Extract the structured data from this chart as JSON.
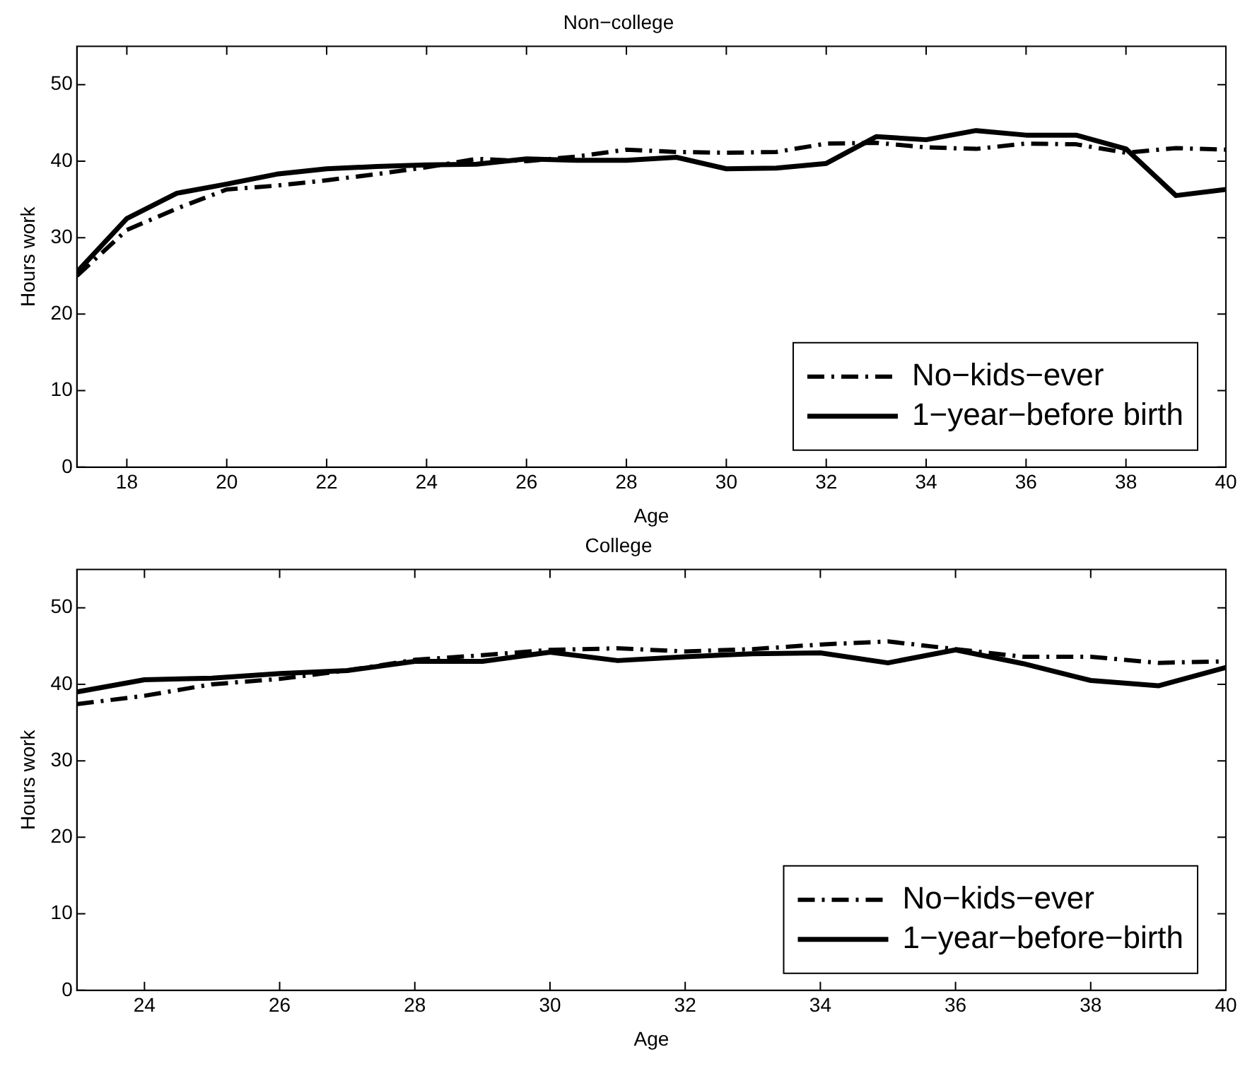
{
  "chart_data": [
    {
      "type": "line",
      "title": "Non−college",
      "xlabel": "Age",
      "ylabel": "Hours work",
      "x": [
        17,
        18,
        19,
        20,
        21,
        22,
        23,
        24,
        25,
        26,
        27,
        28,
        29,
        30,
        31,
        32,
        33,
        34,
        35,
        36,
        37,
        38,
        39,
        40
      ],
      "series": [
        {
          "name": "No−kids−ever",
          "color": "#000000",
          "line_style": "dashed",
          "values": [
            25,
            31,
            33.8,
            36.3,
            36.8,
            37.5,
            38.3,
            39.2,
            40.3,
            40,
            40.6,
            41.5,
            41.2,
            41.1,
            41.2,
            42.3,
            42.4,
            41.8,
            41.6,
            42.3,
            42.2,
            41.1,
            41.7,
            41.5
          ]
        },
        {
          "name": "1−year−before birth",
          "color": "#000000",
          "line_style": "solid",
          "values": [
            25.5,
            32.5,
            35.8,
            37,
            38.3,
            39,
            39.3,
            39.5,
            39.6,
            40.3,
            40.1,
            40.1,
            40.5,
            39,
            39.1,
            39.7,
            43.2,
            42.8,
            44,
            43.4,
            43.4,
            41.6,
            35.5,
            36.3
          ]
        }
      ],
      "xlim": [
        17,
        40
      ],
      "xticks": [
        18,
        20,
        22,
        24,
        26,
        28,
        30,
        32,
        34,
        36,
        38,
        40
      ],
      "ylim": [
        0,
        55
      ],
      "yticks": [
        0,
        10,
        20,
        30,
        40,
        50
      ],
      "grid": false,
      "legend": "bottom right",
      "marker": "none"
    },
    {
      "type": "line",
      "title": "College",
      "xlabel": "Age",
      "ylabel": "Hours work",
      "x": [
        23,
        24,
        25,
        26,
        27,
        28,
        29,
        30,
        31,
        32,
        33,
        34,
        35,
        36,
        37,
        38,
        39,
        40
      ],
      "series": [
        {
          "name": "No−kids−ever",
          "color": "#000000",
          "line_style": "dashed",
          "values": [
            37.4,
            38.5,
            40,
            40.7,
            41.8,
            43.2,
            43.8,
            44.5,
            44.7,
            44.3,
            44.6,
            45.2,
            45.6,
            44.6,
            43.6,
            43.6,
            42.8,
            43
          ]
        },
        {
          "name": "1−year−before−birth",
          "color": "#000000",
          "line_style": "solid",
          "values": [
            39,
            40.6,
            40.8,
            41.4,
            41.8,
            43,
            43,
            44.2,
            43.1,
            43.6,
            44,
            44.1,
            42.8,
            44.5,
            42.7,
            40.5,
            39.8,
            42.2
          ]
        }
      ],
      "xlim": [
        23,
        40
      ],
      "xticks": [
        24,
        26,
        28,
        30,
        32,
        34,
        36,
        38,
        40
      ],
      "ylim": [
        0,
        55
      ],
      "yticks": [
        0,
        10,
        20,
        30,
        40,
        50
      ],
      "grid": false,
      "legend": "bottom right",
      "marker": "none"
    }
  ]
}
